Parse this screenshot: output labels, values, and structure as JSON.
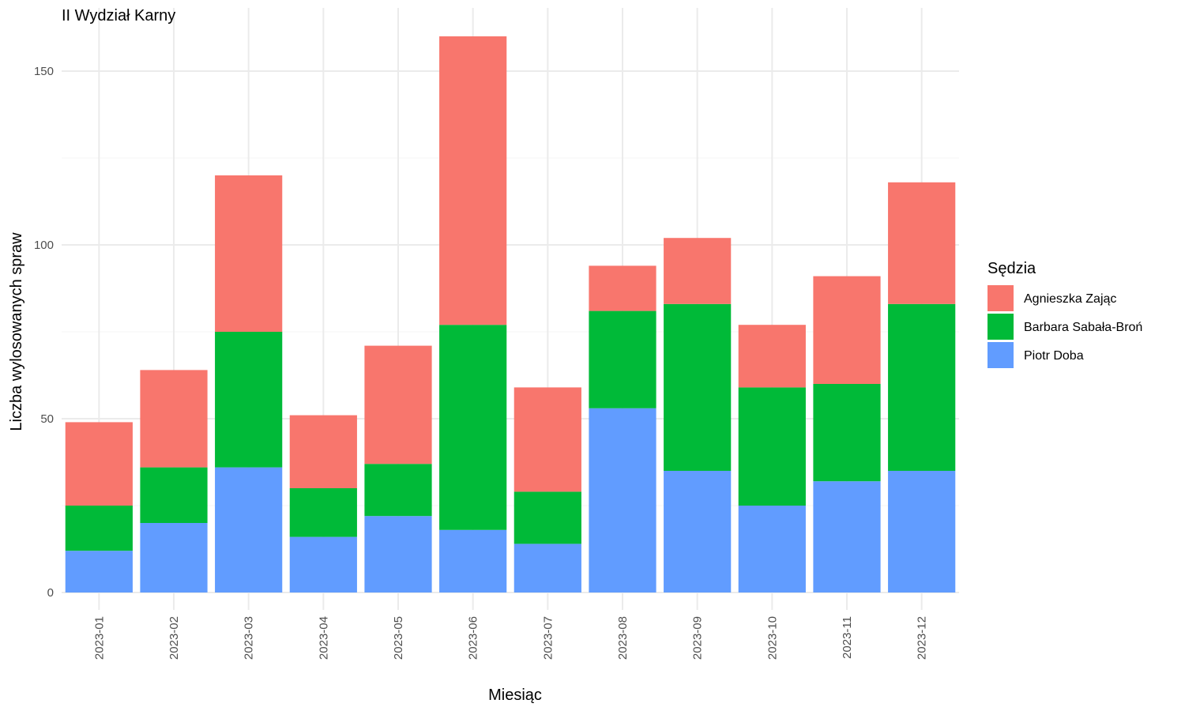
{
  "chart_data": {
    "type": "bar",
    "stacked": true,
    "title": "II Wydział Karny",
    "xlabel": "Miesiąc",
    "ylabel": "Liczba wylosowanych spraw",
    "ylim": [
      0,
      160
    ],
    "yticks": [
      0,
      50,
      100,
      150
    ],
    "grid": true,
    "legend_position": "right",
    "legend_title": "Sędzia",
    "categories": [
      "2023-01",
      "2023-02",
      "2023-03",
      "2023-04",
      "2023-05",
      "2023-06",
      "2023-07",
      "2023-08",
      "2023-09",
      "2023-10",
      "2023-11",
      "2023-12"
    ],
    "series": [
      {
        "name": "Piotr Doba",
        "color": "#619CFF",
        "values": [
          12,
          20,
          36,
          16,
          22,
          18,
          14,
          53,
          35,
          25,
          32,
          35
        ]
      },
      {
        "name": "Barbara Sabała-Broń",
        "color": "#00BA38",
        "values": [
          13,
          16,
          39,
          14,
          15,
          59,
          15,
          28,
          48,
          34,
          28,
          48
        ]
      },
      {
        "name": "Agnieszka Zając",
        "color": "#F8766D",
        "values": [
          24,
          28,
          45,
          21,
          34,
          83,
          30,
          13,
          19,
          18,
          31,
          35
        ]
      }
    ],
    "legend_order": [
      "Agnieszka Zając",
      "Barbara Sabała-Broń",
      "Piotr Doba"
    ]
  }
}
